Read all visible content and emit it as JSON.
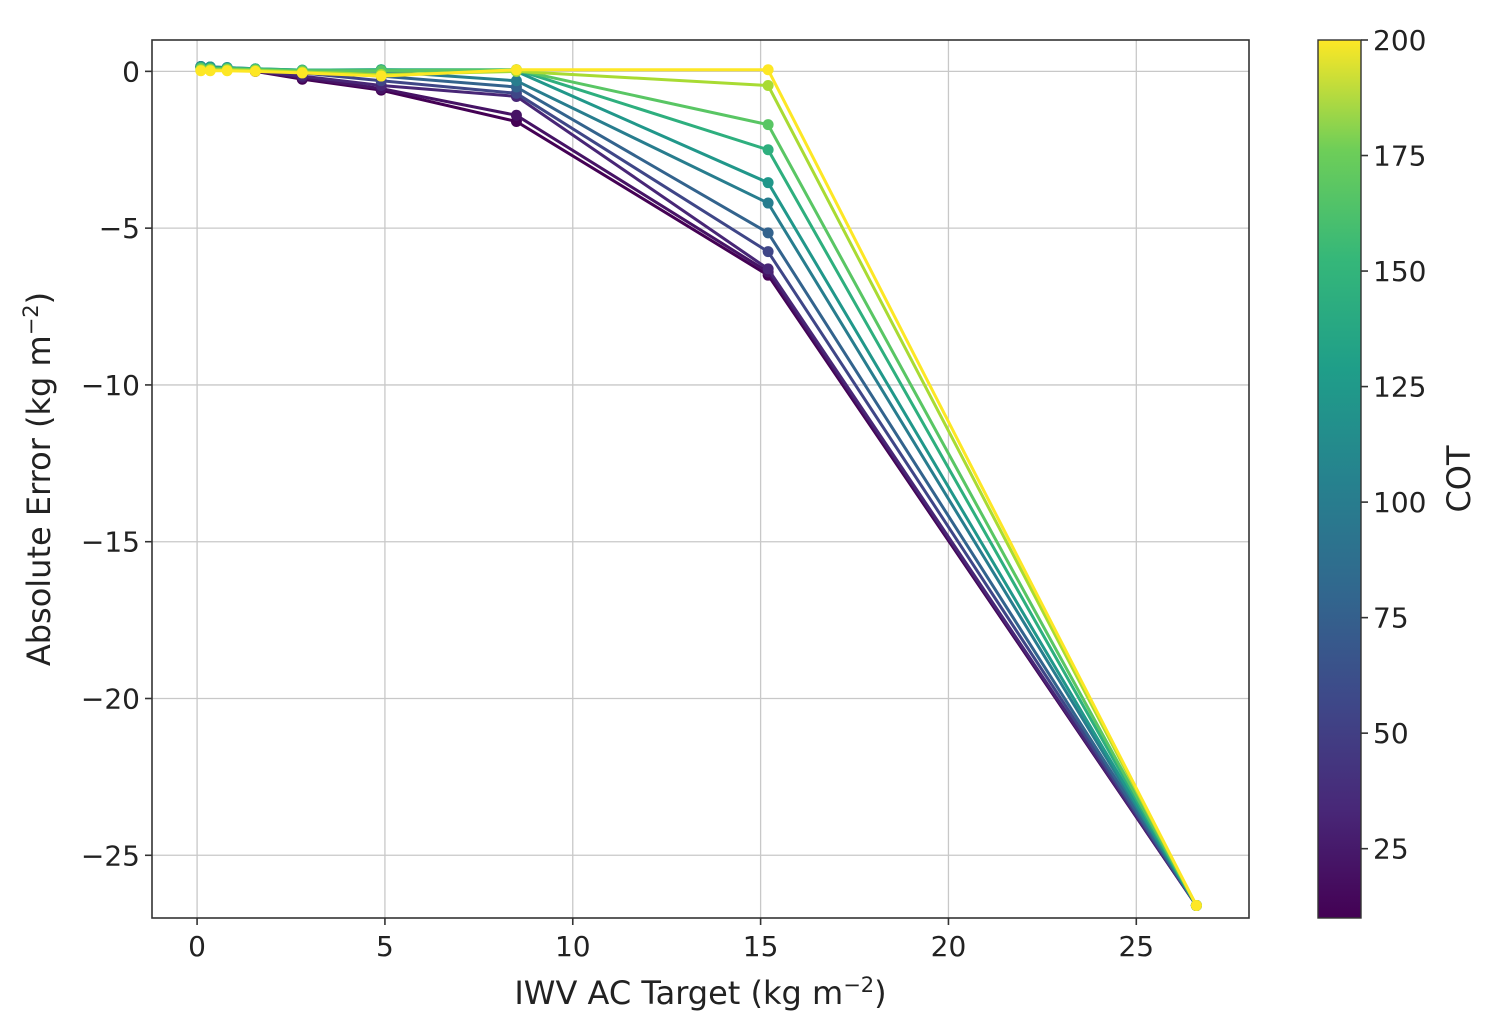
{
  "chart_data": {
    "type": "line",
    "xlabel": "IWV AC Target (kg m",
    "xlabel_sup": "−2",
    "xlabel_end": ")",
    "ylabel": "Absolute Error (kg m",
    "ylabel_sup": "−2",
    "ylabel_end": ")",
    "colorbar_label": "COT",
    "xlim": [
      -1.2,
      28
    ],
    "ylim": [
      -27,
      1
    ],
    "x_ticks": [
      0,
      5,
      10,
      15,
      20,
      25
    ],
    "x_tick_labels": [
      "0",
      "5",
      "10",
      "15",
      "20",
      "25"
    ],
    "y_ticks": [
      0,
      -5,
      -10,
      -15,
      -20,
      -25
    ],
    "y_tick_labels": [
      "0",
      "−5",
      "−10",
      "−15",
      "−20",
      "−25"
    ],
    "colorbar_range": [
      10,
      200
    ],
    "colorbar_ticks": [
      25,
      50,
      75,
      100,
      125,
      150,
      175,
      200
    ],
    "colorbar_tick_labels": [
      "25",
      "50",
      "75",
      "100",
      "125",
      "150",
      "175",
      "200"
    ],
    "colormap": "viridis",
    "grid": true,
    "x": [
      0.1,
      0.35,
      0.8,
      1.55,
      2.8,
      4.9,
      8.5,
      15.2,
      26.6
    ],
    "series": [
      {
        "cot": 10,
        "values": [
          0.15,
          0.12,
          0.1,
          0.0,
          -0.25,
          -0.6,
          -1.6,
          -6.5,
          -26.6
        ]
      },
      {
        "cot": 20,
        "values": [
          0.15,
          0.12,
          0.1,
          0.0,
          -0.2,
          -0.55,
          -1.4,
          -6.4,
          -26.6
        ]
      },
      {
        "cot": 30,
        "values": [
          0.15,
          0.12,
          0.1,
          0.02,
          -0.15,
          -0.45,
          -0.8,
          -6.3,
          -26.6
        ]
      },
      {
        "cot": 50,
        "values": [
          0.15,
          0.12,
          0.1,
          0.04,
          -0.05,
          -0.3,
          -0.7,
          -5.75,
          -26.6
        ]
      },
      {
        "cot": 70,
        "values": [
          0.15,
          0.14,
          0.12,
          0.06,
          0.0,
          -0.15,
          -0.5,
          -5.15,
          -26.6
        ]
      },
      {
        "cot": 90,
        "values": [
          0.15,
          0.14,
          0.12,
          0.08,
          0.02,
          0.0,
          -0.3,
          -4.2,
          -26.6
        ]
      },
      {
        "cot": 110,
        "values": [
          0.15,
          0.14,
          0.12,
          0.08,
          0.04,
          0.05,
          0.0,
          -3.55,
          -26.6
        ]
      },
      {
        "cot": 130,
        "values": [
          0.12,
          0.1,
          0.1,
          0.08,
          0.04,
          0.05,
          0.05,
          -2.5,
          -26.6
        ]
      },
      {
        "cot": 150,
        "values": [
          0.1,
          0.08,
          0.08,
          0.06,
          0.02,
          0.02,
          0.05,
          -1.7,
          -26.6
        ]
      },
      {
        "cot": 175,
        "values": [
          0.05,
          0.05,
          0.05,
          0.03,
          -0.02,
          -0.1,
          0.0,
          -0.45,
          -26.6
        ]
      },
      {
        "cot": 200,
        "values": [
          0.02,
          0.02,
          0.02,
          0.0,
          -0.05,
          -0.15,
          0.05,
          0.05,
          -26.6
        ]
      }
    ]
  }
}
